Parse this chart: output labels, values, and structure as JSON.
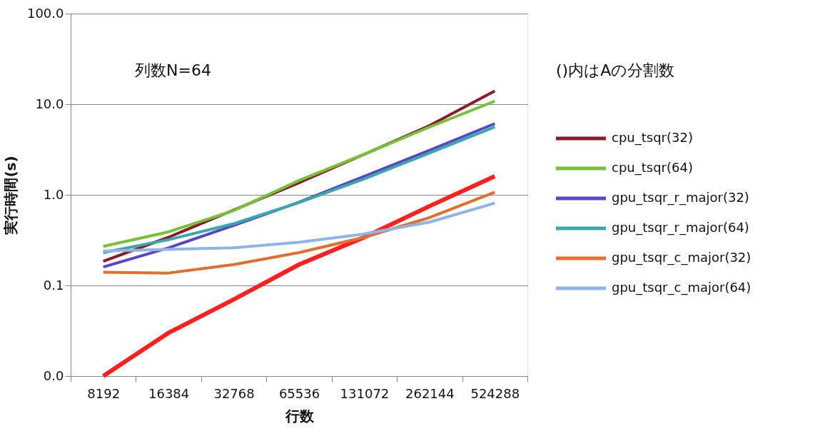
{
  "chart_data": {
    "type": "line",
    "xlabel": "行数",
    "ylabel": "実行時間(s)",
    "legend_title": "()内はAの分割数",
    "legend": "right",
    "log": "y",
    "grid": "y",
    "line_style": "solid",
    "marker": "none",
    "categories": [
      "8192",
      "16384",
      "32768",
      "65536",
      "131072",
      "262144",
      "524288"
    ],
    "ylim": [
      0.01,
      100
    ],
    "yticks": [
      {
        "value": 0.01,
        "label": "0.0"
      },
      {
        "value": 0.1,
        "label": "0.1"
      },
      {
        "value": 1,
        "label": "1.0"
      },
      {
        "value": 10,
        "label": "10.0"
      },
      {
        "value": 100,
        "label": "100.0"
      }
    ],
    "annotations": [
      "列数N=64"
    ],
    "series": [
      {
        "color": "#ff2020",
        "values": [
          0.01,
          0.03,
          0.07,
          0.17,
          0.34,
          0.75,
          1.6
        ]
      },
      {
        "name": "cpu_tsqr(32)",
        "color": "#8b1a2b",
        "values": [
          0.185,
          0.34,
          0.68,
          1.36,
          2.8,
          5.8,
          14
        ]
      },
      {
        "name": "cpu_tsqr(64)",
        "color": "#77c03a",
        "values": [
          0.27,
          0.39,
          0.67,
          1.44,
          2.8,
          5.6,
          10.8
        ]
      },
      {
        "name": "gpu_tsqr_r_major(32)",
        "color": "#5a45c8",
        "values": [
          0.16,
          0.26,
          0.46,
          0.83,
          1.6,
          3.1,
          6.1
        ]
      },
      {
        "name": "gpu_tsqr_r_major(64)",
        "color": "#3aa8a8",
        "values": [
          0.23,
          0.32,
          0.48,
          0.82,
          1.5,
          2.9,
          5.6
        ]
      },
      {
        "name": "gpu_tsqr_c_major(32)",
        "color": "#e07030",
        "values": [
          0.14,
          0.137,
          0.17,
          0.23,
          0.34,
          0.56,
          1.07
        ]
      },
      {
        "name": "gpu_tsqr_c_major(64)",
        "color": "#8fb4e8",
        "values": [
          0.24,
          0.25,
          0.26,
          0.3,
          0.37,
          0.5,
          0.81
        ]
      }
    ]
  }
}
